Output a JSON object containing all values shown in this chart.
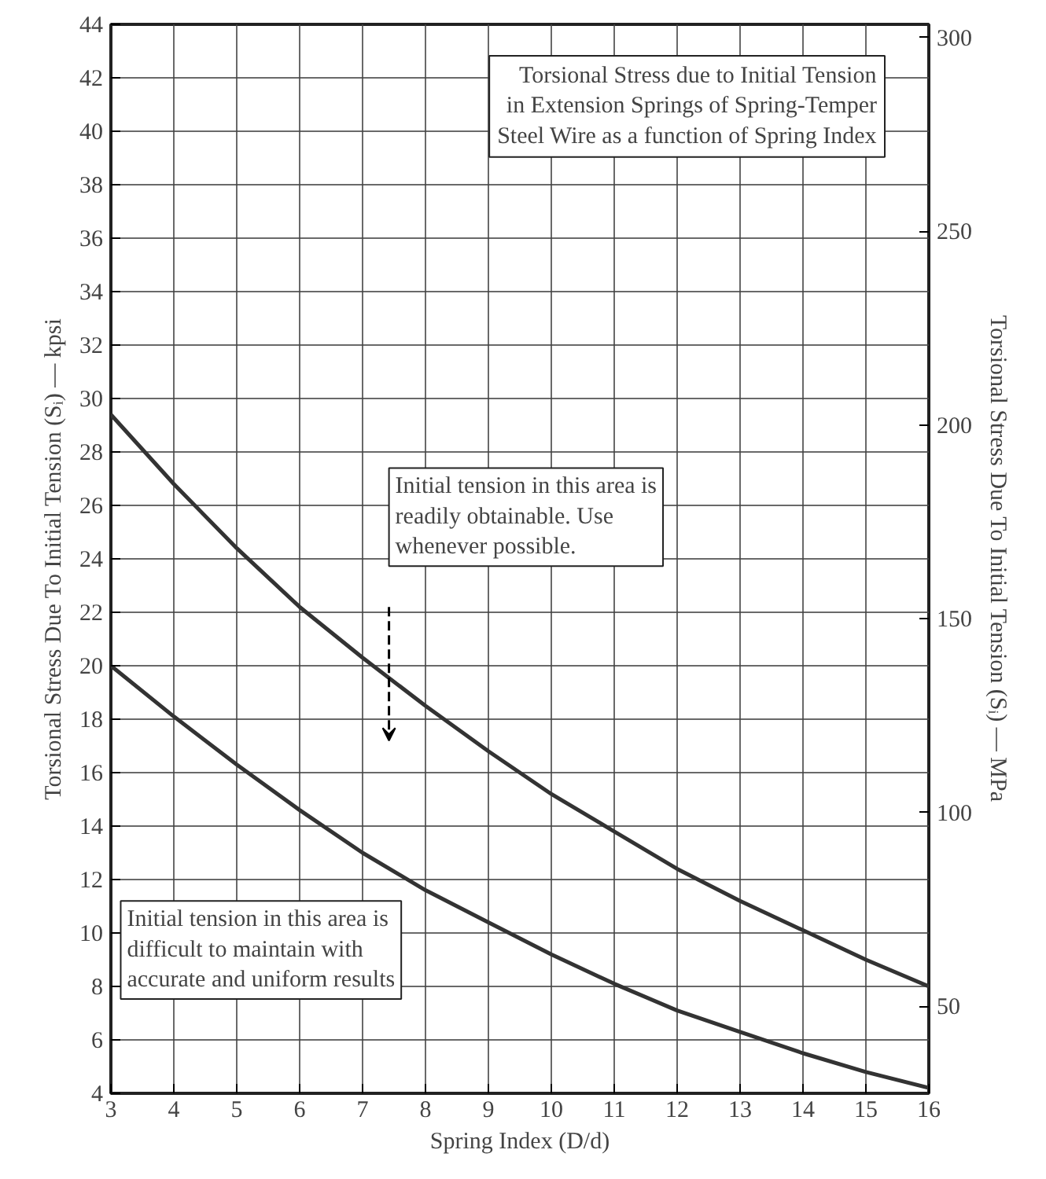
{
  "chart_data": {
    "type": "line",
    "title": "Torsional Stress due to Initial Tension\nin Extension Springs of Spring-Temper\nSteel Wire as a function of Spring Index",
    "xlabel": "Spring Index (D/d)",
    "ylabel": "Torsional Stress Due To Initial Tension (Sᵢ) — kpsi",
    "y2label": "Torsional Stress Due To Initial Tension (Sᵢ) — MPa",
    "x": [
      3,
      4,
      5,
      6,
      7,
      8,
      9,
      10,
      11,
      12,
      13,
      14,
      15,
      16
    ],
    "series": [
      {
        "color": "#333333",
        "values": [
          29.4,
          26.8,
          24.4,
          22.2,
          20.3,
          18.5,
          16.8,
          15.2,
          13.8,
          12.4,
          11.2,
          10.1,
          9.0,
          8.0
        ]
      },
      {
        "color": "#333333",
        "values": [
          20.0,
          18.1,
          16.3,
          14.6,
          13.0,
          11.6,
          10.4,
          9.2,
          8.1,
          7.1,
          6.3,
          5.5,
          4.8,
          4.2
        ]
      }
    ],
    "xlim": [
      3,
      16
    ],
    "xticks": [
      3,
      4,
      5,
      6,
      7,
      8,
      9,
      10,
      11,
      12,
      13,
      14,
      15,
      16
    ],
    "ylim": [
      4,
      44
    ],
    "yticks": [
      4,
      6,
      8,
      10,
      12,
      14,
      16,
      18,
      20,
      22,
      24,
      26,
      28,
      30,
      32,
      34,
      36,
      38,
      40,
      42,
      44
    ],
    "y2lim": [
      27.58,
      303.38
    ],
    "y2ticks": [
      50,
      100,
      150,
      200,
      250,
      300
    ],
    "grid": true,
    "marker": "none",
    "line_style": "solid",
    "annotations": [
      "Initial tension in this area is\nreadily obtainable. Use\nwhenever possible.",
      "Initial tension in this area is\ndifficult to maintain with\naccurate and uniform results"
    ]
  }
}
